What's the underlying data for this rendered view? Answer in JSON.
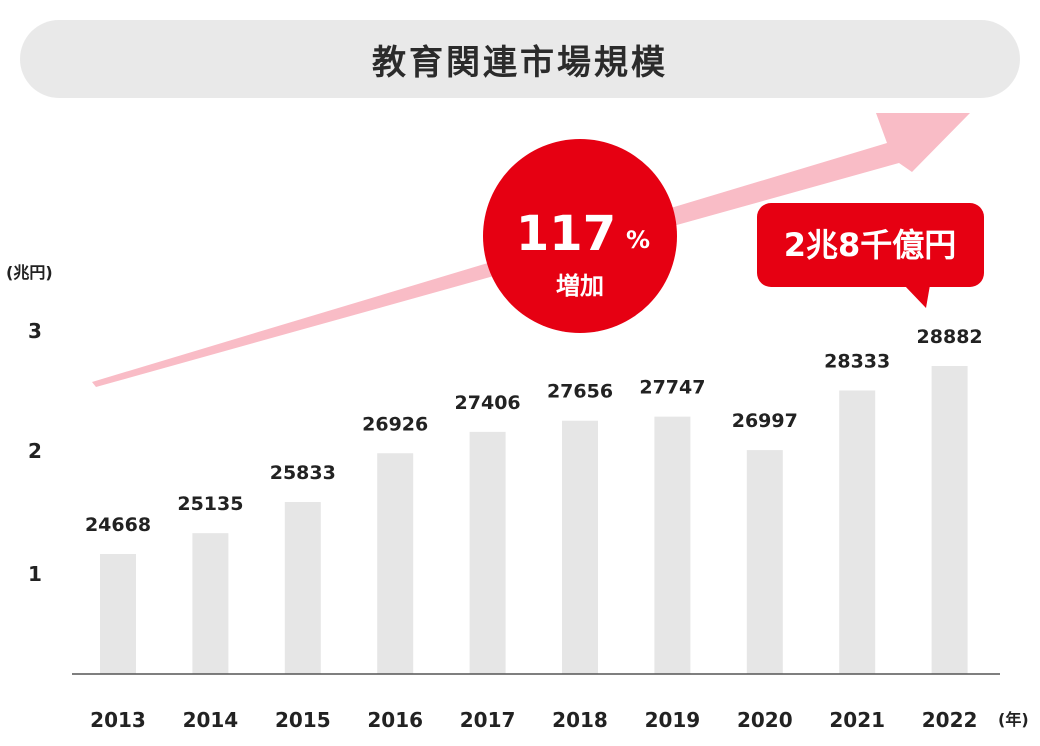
{
  "title": "教育関連市場規模",
  "colors": {
    "bar": "#e6e6e6",
    "accent_red": "#e60012",
    "arrow_pink": "#f9bcc6",
    "title_bg": "#e9e9e9",
    "axis": "#555555"
  },
  "growth_badge": {
    "value": "117",
    "unit": "%",
    "label": "増加"
  },
  "callout": {
    "text": "2兆8千億円"
  },
  "chart_data": {
    "type": "bar",
    "title": "教育関連市場規模",
    "categories": [
      "2013",
      "2014",
      "2015",
      "2016",
      "2017",
      "2018",
      "2019",
      "2020",
      "2021",
      "2022"
    ],
    "values": [
      24668,
      25135,
      25833,
      26926,
      27406,
      27656,
      27747,
      26997,
      28333,
      28882
    ],
    "value_labels": [
      "24668",
      "25135",
      "25833",
      "26926",
      "27406",
      "27656",
      "27747",
      "26997",
      "28333",
      "28882"
    ],
    "y_unit": "(兆円)",
    "x_unit": "(年)",
    "y_ticks": [
      {
        "value": 1,
        "label": "1"
      },
      {
        "value": 2,
        "label": "2"
      },
      {
        "value": 3,
        "label": "3"
      }
    ],
    "grid": false,
    "legend": "none"
  }
}
